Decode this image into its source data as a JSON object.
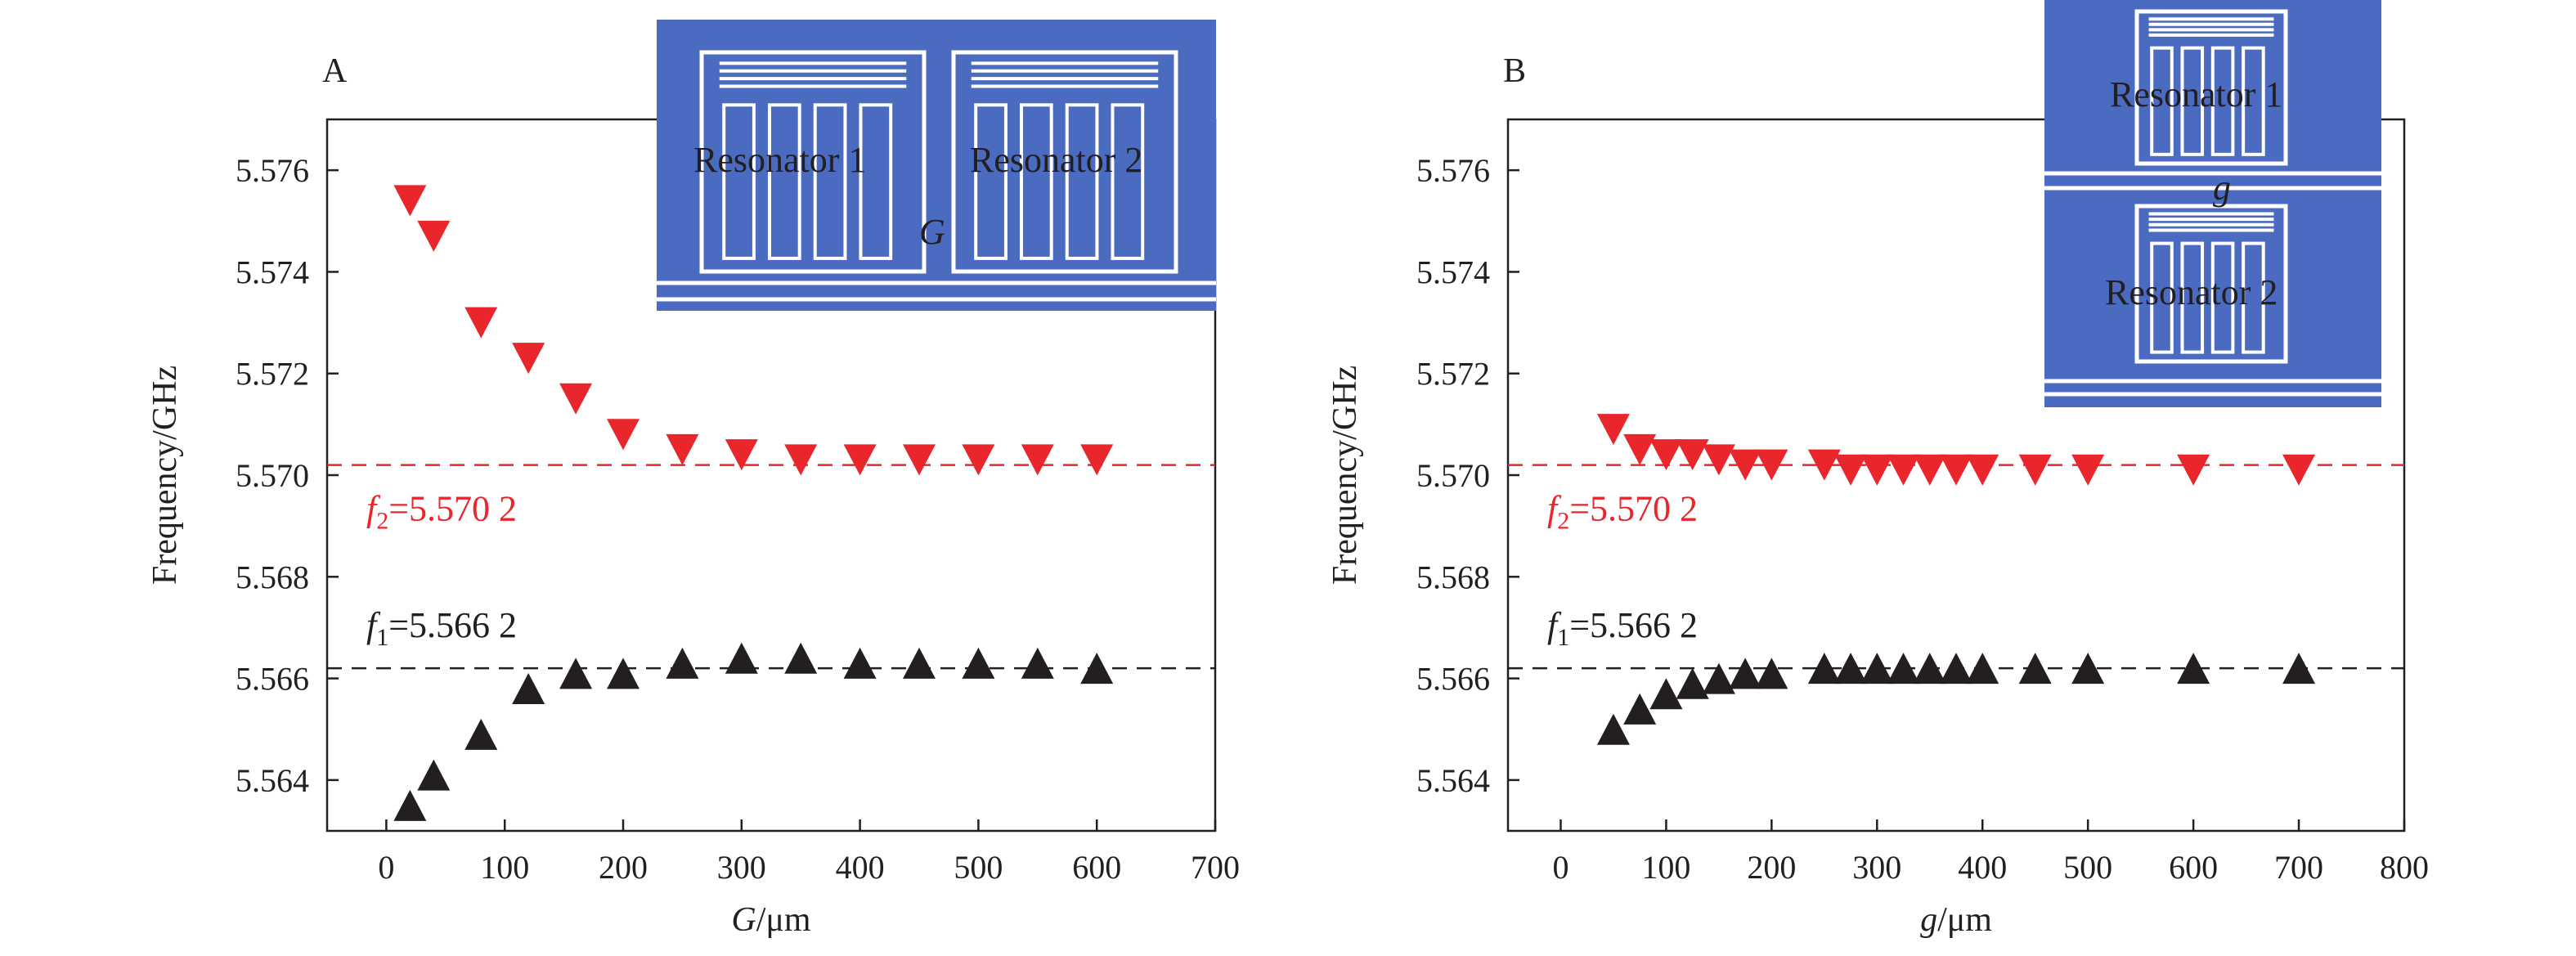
{
  "colors": {
    "f2_series": "#e8262b",
    "f1_series": "#231f20",
    "f2_line": "#e8262b",
    "f1_line": "#231f20",
    "inset_fill": "#4a6bbf",
    "inset_line": "#ffffff"
  },
  "chart_data": [
    {
      "type": "scatter",
      "panel": "A",
      "title": "",
      "xlabel_var": "G",
      "xlabel_unit": "/μm",
      "ylabel": "Frequency/GHz",
      "xlim": [
        -50,
        700
      ],
      "ylim": [
        5.563,
        5.577
      ],
      "xticks": [
        0,
        100,
        200,
        300,
        400,
        500,
        600,
        700
      ],
      "yticks": [
        5.564,
        5.566,
        5.568,
        5.57,
        5.572,
        5.574,
        5.576
      ],
      "ytick_labels": [
        "5.564",
        "5.566",
        "5.568",
        "5.570",
        "5.572",
        "5.574",
        "5.576"
      ],
      "grid": false,
      "series": [
        {
          "id": "f2",
          "marker": "triangle-down",
          "x": [
            20,
            40,
            80,
            120,
            160,
            200,
            250,
            300,
            350,
            400,
            450,
            500,
            550,
            600
          ],
          "y": [
            5.5754,
            5.5747,
            5.573,
            5.5723,
            5.5715,
            5.5708,
            5.5705,
            5.5704,
            5.5703,
            5.5703,
            5.5703,
            5.5703,
            5.5703,
            5.5703
          ]
        },
        {
          "id": "f1",
          "marker": "triangle-up",
          "x": [
            20,
            40,
            80,
            120,
            160,
            200,
            250,
            300,
            350,
            400,
            450,
            500,
            550,
            600
          ],
          "y": [
            5.5635,
            5.5641,
            5.5649,
            5.5658,
            5.5661,
            5.5661,
            5.5663,
            5.5664,
            5.5664,
            5.5663,
            5.5663,
            5.5663,
            5.5663,
            5.5662
          ]
        }
      ],
      "reference_lines": [
        {
          "id": "f2",
          "y": 5.5702,
          "symbol": "f",
          "subscript": "2",
          "value_text": "=5.570 2"
        },
        {
          "id": "f1",
          "y": 5.5662,
          "symbol": "f",
          "subscript": "1",
          "value_text": "=5.566 2"
        }
      ],
      "inset": {
        "label_1": "Resonator 1",
        "label_2": "Resonator 2",
        "gap_label": "G"
      }
    },
    {
      "type": "scatter",
      "panel": "B",
      "title": "",
      "xlabel_var": "g",
      "xlabel_unit": "/μm",
      "ylabel": "Frequency/GHz",
      "xlim": [
        -50,
        800
      ],
      "ylim": [
        5.563,
        5.577
      ],
      "xticks": [
        0,
        100,
        200,
        300,
        400,
        500,
        600,
        700,
        800
      ],
      "yticks": [
        5.564,
        5.566,
        5.568,
        5.57,
        5.572,
        5.574,
        5.576
      ],
      "ytick_labels": [
        "5.564",
        "5.566",
        "5.568",
        "5.570",
        "5.572",
        "5.574",
        "5.576"
      ],
      "grid": false,
      "series": [
        {
          "id": "f2",
          "marker": "triangle-down",
          "x": [
            50,
            75,
            100,
            125,
            150,
            175,
            200,
            250,
            275,
            300,
            325,
            350,
            375,
            400,
            450,
            500,
            600,
            700
          ],
          "y": [
            5.5709,
            5.5705,
            5.5704,
            5.5704,
            5.5703,
            5.5702,
            5.5702,
            5.5702,
            5.5701,
            5.5701,
            5.5701,
            5.5701,
            5.5701,
            5.5701,
            5.5701,
            5.5701,
            5.5701,
            5.5701
          ]
        },
        {
          "id": "f1",
          "marker": "triangle-up",
          "x": [
            50,
            75,
            100,
            125,
            150,
            175,
            200,
            250,
            275,
            300,
            325,
            350,
            375,
            400,
            450,
            500,
            600,
            700
          ],
          "y": [
            5.565,
            5.5654,
            5.5657,
            5.5659,
            5.566,
            5.5661,
            5.5661,
            5.5662,
            5.5662,
            5.5662,
            5.5662,
            5.5662,
            5.5662,
            5.5662,
            5.5662,
            5.5662,
            5.5662,
            5.5662
          ]
        }
      ],
      "reference_lines": [
        {
          "id": "f2",
          "y": 5.5702,
          "symbol": "f",
          "subscript": "2",
          "value_text": "=5.570 2"
        },
        {
          "id": "f1",
          "y": 5.5662,
          "symbol": "f",
          "subscript": "1",
          "value_text": "=5.566 2"
        }
      ],
      "inset": {
        "label_1": "Resonator 1",
        "label_2": "Resonator 2",
        "gap_label": "g"
      }
    }
  ]
}
